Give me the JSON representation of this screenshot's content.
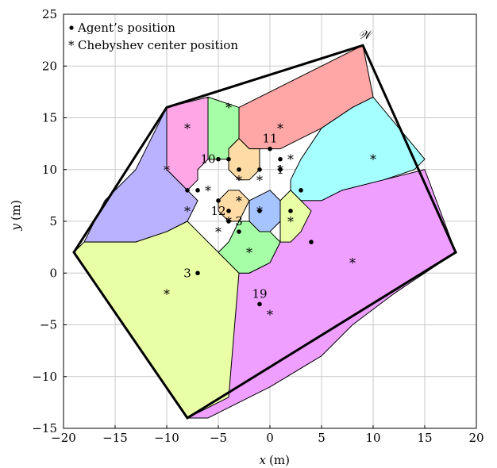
{
  "chart_data": {
    "type": "scatter",
    "xlabel": "x",
    "xunit": "(m)",
    "ylabel": "y",
    "yunit": "(m)",
    "xlim": [
      -20,
      20
    ],
    "ylim": [
      -15,
      25
    ],
    "xticks": [
      -20,
      -15,
      -10,
      -5,
      0,
      5,
      10,
      15,
      20
    ],
    "yticks": [
      -15,
      -10,
      -5,
      0,
      5,
      10,
      15,
      20,
      25
    ],
    "xtick_labels": [
      "−20",
      "−15",
      "−10",
      "−5",
      "0",
      "5",
      "10",
      "15",
      "20"
    ],
    "ytick_labels": [
      "−15",
      "−10",
      "−5",
      "0",
      "5",
      "10",
      "15",
      "20",
      "25"
    ],
    "grid": true,
    "legend": {
      "placement": "top-left",
      "entries": [
        {
          "marker": "dot",
          "label": "Agent’s position"
        },
        {
          "marker": "star",
          "label": "Chebyshev center position"
        }
      ]
    },
    "region_label": "𝒲",
    "boundary": [
      [
        -19,
        2
      ],
      [
        -10,
        16
      ],
      [
        9,
        22
      ],
      [
        18,
        2
      ],
      [
        -8,
        -14
      ]
    ],
    "cells": [
      {
        "color": "#ffa6a6",
        "polygon": [
          [
            -3,
            16
          ],
          [
            9,
            22
          ],
          [
            10,
            17
          ],
          [
            8,
            16
          ],
          [
            5,
            14
          ],
          [
            3,
            13
          ],
          [
            1,
            12
          ],
          [
            -1,
            12
          ],
          [
            -2,
            12
          ],
          [
            -3,
            13
          ]
        ]
      },
      {
        "color": "#a6ffff",
        "polygon": [
          [
            10,
            17
          ],
          [
            15,
            11
          ],
          [
            14,
            10
          ],
          [
            11,
            9
          ],
          [
            7,
            8
          ],
          [
            5,
            7
          ],
          [
            3,
            7
          ],
          [
            2,
            8
          ],
          [
            2,
            9
          ],
          [
            3,
            11
          ],
          [
            5,
            14
          ],
          [
            8,
            16
          ]
        ]
      },
      {
        "color": "#a6ffa6",
        "polygon": [
          [
            -6,
            17
          ],
          [
            -3,
            16
          ],
          [
            -3,
            13
          ],
          [
            -4,
            12
          ],
          [
            -4,
            11
          ],
          [
            -6,
            11
          ],
          [
            -6,
            13
          ]
        ]
      },
      {
        "color": "#ffa6e6",
        "polygon": [
          [
            -10,
            16
          ],
          [
            -6,
            17
          ],
          [
            -6,
            13
          ],
          [
            -6,
            11
          ],
          [
            -7,
            10
          ],
          [
            -7,
            9
          ],
          [
            -8,
            8
          ],
          [
            -10,
            10
          ],
          [
            -10,
            13
          ]
        ]
      },
      {
        "color": "#bbb2ff",
        "polygon": [
          [
            -10,
            16
          ],
          [
            -10,
            13
          ],
          [
            -10,
            10
          ],
          [
            -8,
            8
          ],
          [
            -7,
            7
          ],
          [
            -8,
            5
          ],
          [
            -10,
            4
          ],
          [
            -13,
            3
          ],
          [
            -18,
            3
          ],
          [
            -16,
            7
          ],
          [
            -13,
            10
          ]
        ]
      },
      {
        "color": "#e9ffa6",
        "polygon": [
          [
            -19,
            2
          ],
          [
            -18,
            3
          ],
          [
            -13,
            3
          ],
          [
            -10,
            4
          ],
          [
            -8,
            5
          ],
          [
            -7,
            4
          ],
          [
            -6,
            3
          ],
          [
            -5,
            2
          ],
          [
            -4,
            1
          ],
          [
            -3,
            0
          ],
          [
            -2,
            -5
          ],
          [
            -3,
            -10
          ],
          [
            -4,
            -12
          ],
          [
            -6,
            -14
          ],
          [
            -8,
            -14
          ]
        ]
      },
      {
        "color": "#ee9fff",
        "polygon": [
          [
            -8,
            -14
          ],
          [
            -6,
            -14
          ],
          [
            0,
            -11
          ],
          [
            5,
            -8
          ],
          [
            8,
            -5
          ],
          [
            12,
            -2
          ],
          [
            18,
            2
          ],
          [
            15,
            10
          ],
          [
            11,
            9
          ],
          [
            7,
            8
          ],
          [
            5,
            7
          ],
          [
            3,
            7
          ],
          [
            2,
            5
          ],
          [
            1,
            3
          ],
          [
            0,
            1
          ],
          [
            -2,
            0
          ],
          [
            -3,
            0
          ],
          [
            -4,
            -12
          ]
        ]
      },
      {
        "color": "#ffdca6",
        "polygon": [
          [
            -3,
            13
          ],
          [
            -2,
            12
          ],
          [
            -1,
            12
          ],
          [
            -1,
            10
          ],
          [
            -2,
            9
          ],
          [
            -3,
            9
          ],
          [
            -4,
            10
          ],
          [
            -4,
            11
          ],
          [
            -4,
            12
          ]
        ]
      },
      {
        "color": "#ffdca6",
        "polygon": [
          [
            -4,
            8
          ],
          [
            -3,
            8
          ],
          [
            -2,
            7
          ],
          [
            -3,
            5
          ],
          [
            -4,
            5
          ],
          [
            -5,
            6
          ],
          [
            -5,
            7
          ]
        ]
      },
      {
        "color": "#a6c4ff",
        "polygon": [
          [
            -2,
            7
          ],
          [
            0,
            8
          ],
          [
            1,
            7
          ],
          [
            1,
            5
          ],
          [
            0,
            4
          ],
          [
            -1,
            4
          ],
          [
            -2,
            5
          ]
        ]
      },
      {
        "color": "#a6ffa6",
        "polygon": [
          [
            -3,
            5
          ],
          [
            -2,
            5
          ],
          [
            -1,
            4
          ],
          [
            0,
            4
          ],
          [
            1,
            3
          ],
          [
            0,
            1
          ],
          [
            -2,
            0
          ],
          [
            -3,
            0
          ],
          [
            -4,
            1
          ],
          [
            -5,
            2
          ],
          [
            -4,
            3
          ]
        ]
      },
      {
        "color": "#e9ffa6",
        "polygon": [
          [
            1,
            5
          ],
          [
            1,
            3
          ],
          [
            2,
            3
          ],
          [
            3,
            4
          ],
          [
            4,
            6
          ],
          [
            3,
            7
          ],
          [
            2,
            8
          ],
          [
            1,
            7
          ]
        ]
      }
    ],
    "series": [
      {
        "name": "Agent’s position",
        "marker": "dot",
        "points": [
          [
            -7,
            0
          ],
          [
            -1,
            -3
          ],
          [
            4,
            3
          ],
          [
            3,
            8
          ],
          [
            2,
            6
          ],
          [
            -4,
            5
          ],
          [
            -3,
            4
          ],
          [
            -4,
            6
          ],
          [
            -1,
            6
          ],
          [
            -5,
            11
          ],
          [
            -4,
            11
          ],
          [
            -3,
            10
          ],
          [
            -1,
            10
          ],
          [
            0,
            12
          ],
          [
            1,
            11
          ],
          [
            1,
            10
          ],
          [
            -8,
            8
          ],
          [
            -7,
            8
          ],
          [
            -5,
            7
          ]
        ]
      },
      {
        "name": "Chebyshev center position",
        "marker": "star",
        "points": [
          [
            -10,
            -2
          ],
          [
            0,
            -4
          ],
          [
            8,
            1
          ],
          [
            10,
            11
          ],
          [
            2,
            11
          ],
          [
            1,
            14
          ],
          [
            -4,
            16
          ],
          [
            -8,
            14
          ],
          [
            -10,
            10
          ],
          [
            -8,
            6
          ],
          [
            -6,
            8
          ],
          [
            -5,
            4
          ],
          [
            -2,
            2
          ],
          [
            -3,
            7
          ],
          [
            -3,
            9
          ],
          [
            -1,
            9
          ],
          [
            1,
            10
          ],
          [
            -1,
            6
          ],
          [
            2,
            5
          ],
          [
            -4,
            5
          ]
        ]
      }
    ],
    "annotations": [
      {
        "text": "3",
        "x": -8,
        "y": 0
      },
      {
        "text": "19",
        "x": -1,
        "y": -2
      },
      {
        "text": "10",
        "x": -6,
        "y": 11
      },
      {
        "text": "11",
        "x": 0,
        "y": 13
      },
      {
        "text": "1",
        "x": 1,
        "y": 10
      },
      {
        "text": "12",
        "x": -5,
        "y": 6
      },
      {
        "text": "3",
        "x": -3,
        "y": 5
      }
    ]
  }
}
